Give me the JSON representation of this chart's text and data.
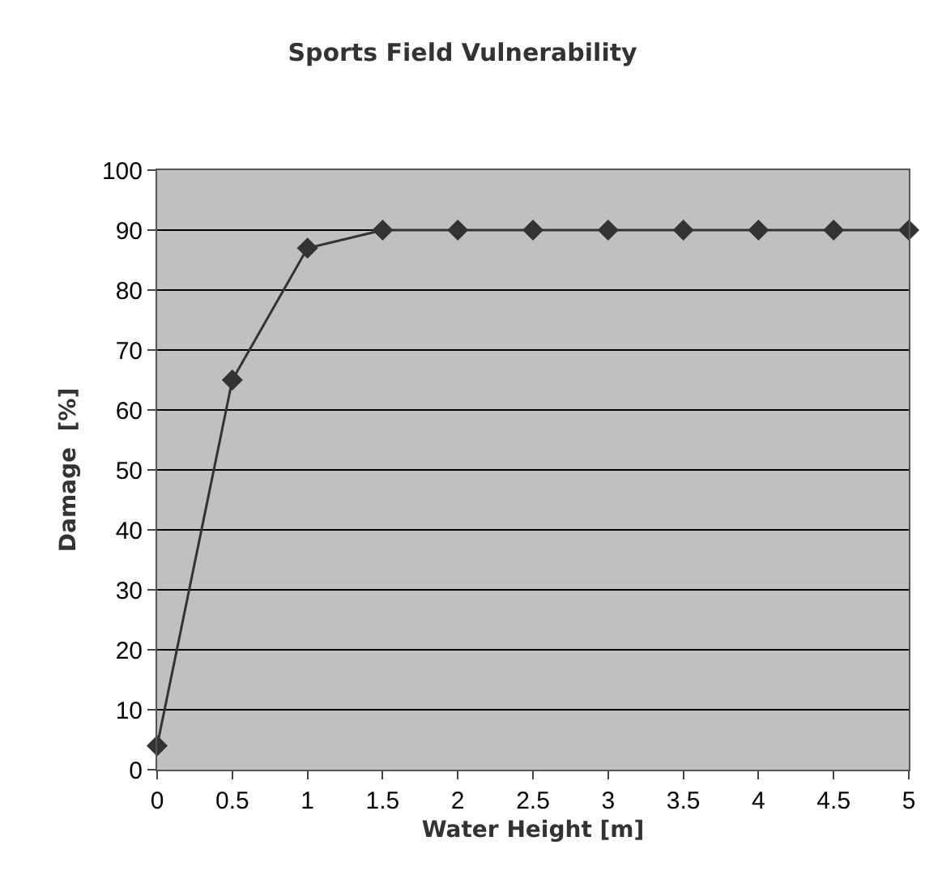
{
  "chart_data": {
    "type": "line",
    "title": "Sports Field Vulnerability",
    "xlabel": "Water Height [m]",
    "ylabel": "Damage  [%]",
    "x": [
      0,
      0.5,
      1,
      1.5,
      2,
      2.5,
      3,
      3.5,
      4,
      4.5,
      5
    ],
    "series": [
      {
        "color": "#333333",
        "values": [
          4,
          65,
          87,
          90,
          90,
          90,
          90,
          90,
          90,
          90,
          90
        ]
      }
    ],
    "xlim": [
      0,
      5
    ],
    "xticks": [
      0,
      0.5,
      1,
      1.5,
      2,
      2.5,
      3,
      3.5,
      4,
      4.5,
      5
    ],
    "ylim": [
      0,
      100
    ],
    "yticks": [
      0,
      10,
      20,
      30,
      40,
      50,
      60,
      70,
      80,
      90,
      100
    ],
    "grid": "y",
    "marker": "diamond",
    "line_style": "solid"
  }
}
